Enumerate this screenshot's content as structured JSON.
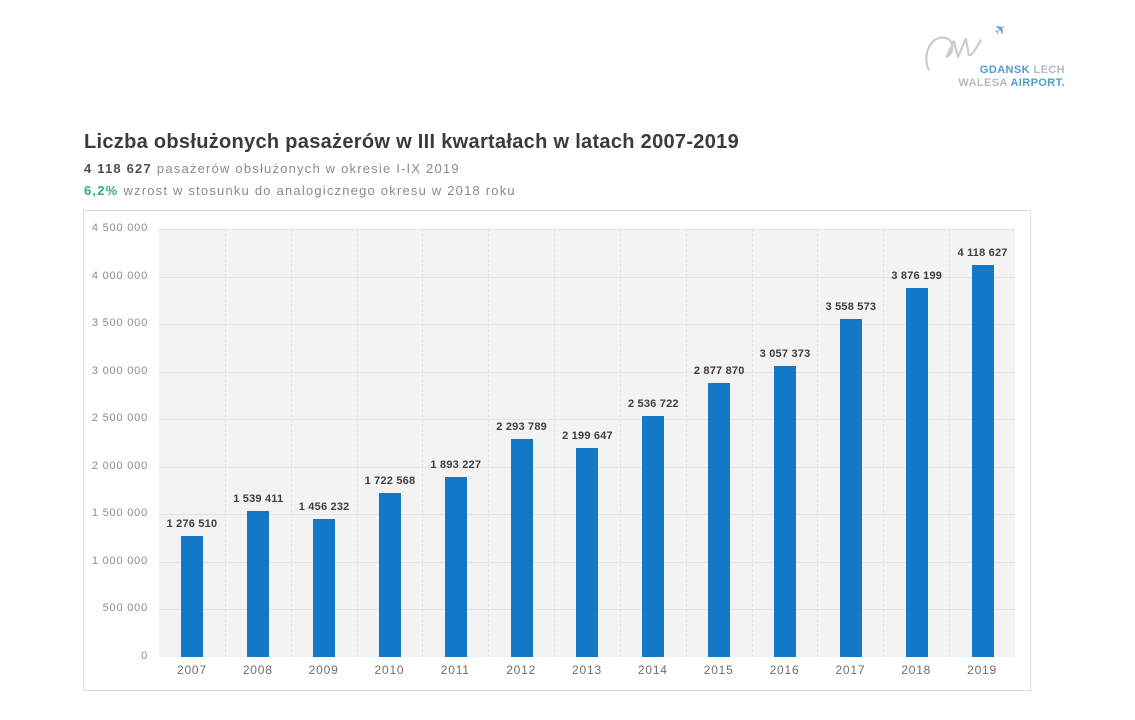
{
  "logo": {
    "gdansk": "GDANSK",
    "lech": "LECH",
    "walesa": "WALESA",
    "airport": "AIRPORT.",
    "plane_icon": "✈",
    "blue": "#4f9bd5",
    "gray": "#b6bbc0"
  },
  "header": {
    "title": "Liczba obsłużonych pasażerów w III kwartałach w latach 2007-2019",
    "passengers_value": "4 118 627",
    "passengers_text": "pasażerów obsłużonych w okresie I-IX 2019",
    "growth_value": "6,2%",
    "growth_text": "wzrost w stosunku do analogicznego okresu w 2018 roku"
  },
  "colors": {
    "bar_blue": "#1478c8",
    "accent_green": "#2fb170",
    "grid_gray": "#e4e4e4",
    "plot_background": "#f3f3f3"
  },
  "chart_data": {
    "type": "bar",
    "title": "Liczba obsłużonych pasażerów w III kwartałach w latach 2007-2019",
    "categories": [
      "2007",
      "2008",
      "2009",
      "2010",
      "2011",
      "2012",
      "2013",
      "2014",
      "2015",
      "2016",
      "2017",
      "2018",
      "2019"
    ],
    "values": [
      1276510,
      1539411,
      1456232,
      1722568,
      1893227,
      2293789,
      2199647,
      2536722,
      2877870,
      3057373,
      3558573,
      3876199,
      4118627
    ],
    "xlabel": "",
    "ylabel": "",
    "ylim": [
      0,
      4500000
    ],
    "ytick_step": 500000,
    "ytick_labels": [
      "0",
      "500 000",
      "1 000 000",
      "1 500 000",
      "2 000 000",
      "2 500 000",
      "3 000 000",
      "3 500 000",
      "4 000 000",
      "4 500 000"
    ],
    "grid": true,
    "legend": false,
    "bar_color": "#1478c8"
  }
}
